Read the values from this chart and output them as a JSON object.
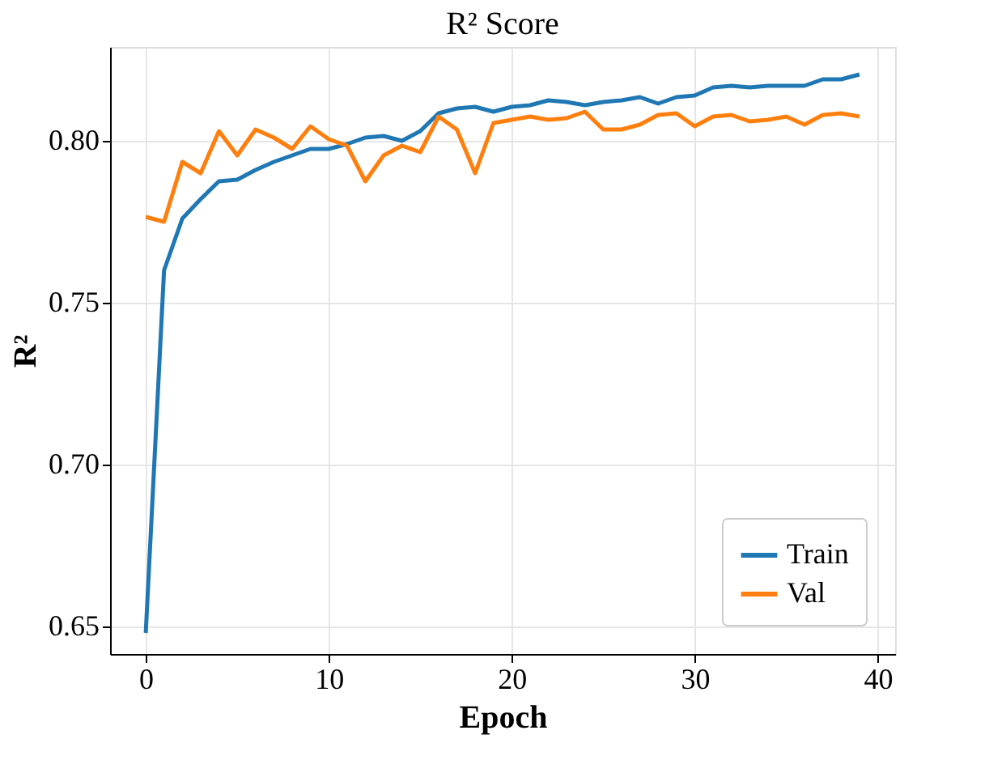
{
  "chart_data": {
    "type": "line",
    "title": "R² Score",
    "xlabel": "Epoch",
    "ylabel": "R²",
    "x": [
      0,
      1,
      2,
      3,
      4,
      5,
      6,
      7,
      8,
      9,
      10,
      11,
      12,
      13,
      14,
      15,
      16,
      17,
      18,
      19,
      20,
      21,
      22,
      23,
      24,
      25,
      26,
      27,
      28,
      29,
      30,
      31,
      32,
      33,
      34,
      35,
      36,
      37,
      38,
      39
    ],
    "series": [
      {
        "name": "Train",
        "color": "#1f77b4",
        "values": [
          0.648,
          0.76,
          0.776,
          0.782,
          0.7875,
          0.788,
          0.791,
          0.7935,
          0.7955,
          0.7975,
          0.7975,
          0.799,
          0.801,
          0.8015,
          0.8,
          0.803,
          0.8085,
          0.81,
          0.8105,
          0.809,
          0.8105,
          0.811,
          0.8125,
          0.812,
          0.811,
          0.812,
          0.8125,
          0.8135,
          0.8115,
          0.8135,
          0.814,
          0.8165,
          0.817,
          0.8165,
          0.817,
          0.817,
          0.817,
          0.819,
          0.819,
          0.8205
        ]
      },
      {
        "name": "Val",
        "color": "#ff7f0e",
        "values": [
          0.7765,
          0.775,
          0.7935,
          0.79,
          0.803,
          0.7955,
          0.8035,
          0.801,
          0.7975,
          0.8045,
          0.8005,
          0.7985,
          0.7875,
          0.7955,
          0.7985,
          0.7965,
          0.8075,
          0.8035,
          0.79,
          0.8055,
          0.8065,
          0.8075,
          0.8065,
          0.807,
          0.809,
          0.8035,
          0.8035,
          0.805,
          0.808,
          0.8085,
          0.8045,
          0.8075,
          0.808,
          0.806,
          0.8065,
          0.8075,
          0.805,
          0.808,
          0.8085,
          0.8075
        ]
      }
    ],
    "xlim": [
      -1.95,
      40.95
    ],
    "xticks": [
      0,
      10,
      20,
      30,
      40
    ],
    "ylim": [
      0.6415,
      0.829
    ],
    "yticks": [
      {
        "value": 0.65,
        "label": "0.65"
      },
      {
        "value": 0.7,
        "label": "0.70"
      },
      {
        "value": 0.75,
        "label": "0.75"
      },
      {
        "value": 0.8,
        "label": "0.80"
      }
    ],
    "grid": true,
    "legend": "bottom right",
    "marker": "none",
    "line_style": "solid"
  }
}
